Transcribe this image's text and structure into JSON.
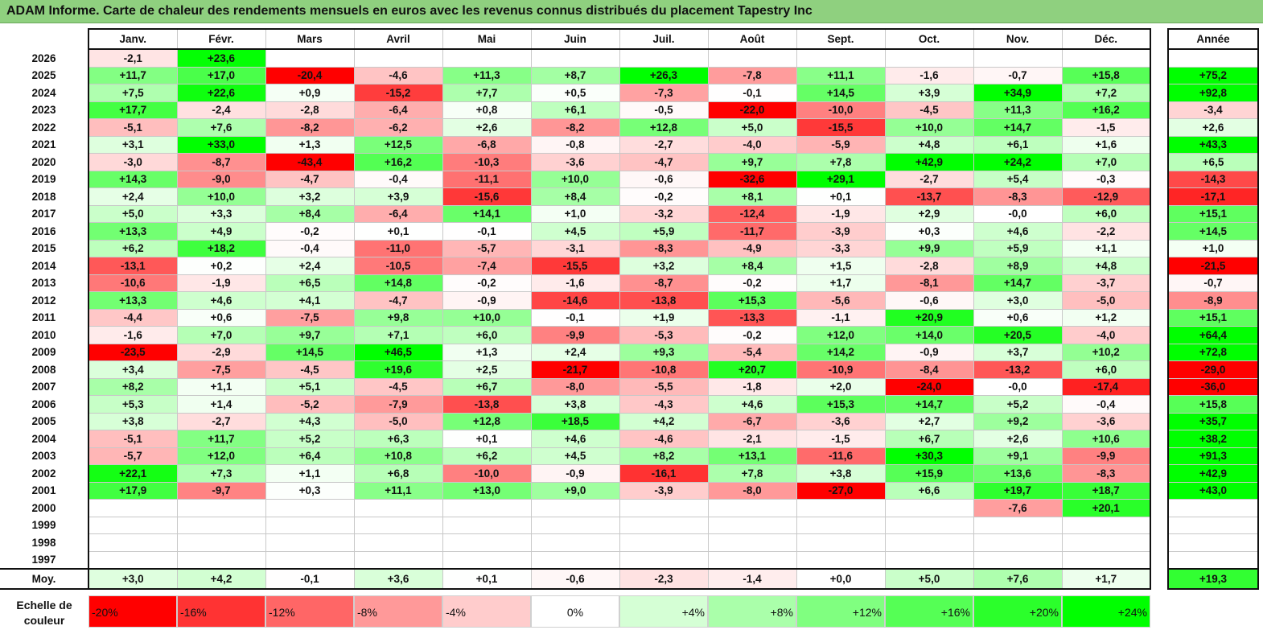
{
  "title": "ADAM Informe. Carte de chaleur des rendements mensuels en euros avec les revenus connus distribués du placement Tapestry Inc",
  "chart_data": {
    "type": "heatmap",
    "title": "ADAM Informe. Carte de chaleur des rendements mensuels en euros avec les revenus connus distribués du placement Tapestry Inc",
    "months": [
      "Janv.",
      "Févr.",
      "Mars",
      "Avril",
      "Mai",
      "Juin",
      "Juil.",
      "Août",
      "Sept.",
      "Oct.",
      "Nov.",
      "Déc."
    ],
    "year_header": "Année",
    "rows": [
      {
        "year": "2026",
        "months": [
          "-2,1",
          "+23,6",
          "",
          "",
          "",
          "",
          "",
          "",
          "",
          "",
          "",
          ""
        ],
        "annual": ""
      },
      {
        "year": "2025",
        "months": [
          "+11,7",
          "+17,0",
          "-20,4",
          "-4,6",
          "+11,3",
          "+8,7",
          "+26,3",
          "-7,8",
          "+11,1",
          "-1,6",
          "-0,7",
          "+15,8"
        ],
        "annual": "+75,2"
      },
      {
        "year": "2024",
        "months": [
          "+7,5",
          "+22,6",
          "+0,9",
          "-15,2",
          "+7,7",
          "+0,5",
          "-7,3",
          "-0,1",
          "+14,5",
          "+3,9",
          "+34,9",
          "+7,2"
        ],
        "annual": "+92,8"
      },
      {
        "year": "2023",
        "months": [
          "+17,7",
          "-2,4",
          "-2,8",
          "-6,4",
          "+0,8",
          "+6,1",
          "-0,5",
          "-22,0",
          "-10,0",
          "-4,5",
          "+11,3",
          "+16,2"
        ],
        "annual": "-3,4"
      },
      {
        "year": "2022",
        "months": [
          "-5,1",
          "+7,6",
          "-8,2",
          "-6,2",
          "+2,6",
          "-8,2",
          "+12,8",
          "+5,0",
          "-15,5",
          "+10,0",
          "+14,7",
          "-1,5"
        ],
        "annual": "+2,6"
      },
      {
        "year": "2021",
        "months": [
          "+3,1",
          "+33,0",
          "+1,3",
          "+12,5",
          "-6,8",
          "-0,8",
          "-2,7",
          "-4,0",
          "-5,9",
          "+4,8",
          "+6,1",
          "+1,6"
        ],
        "annual": "+43,3"
      },
      {
        "year": "2020",
        "months": [
          "-3,0",
          "-8,7",
          "-43,4",
          "+16,2",
          "-10,3",
          "-3,6",
          "-4,7",
          "+9,7",
          "+7,8",
          "+42,9",
          "+24,2",
          "+7,0"
        ],
        "annual": "+6,5"
      },
      {
        "year": "2019",
        "months": [
          "+14,3",
          "-9,0",
          "-4,7",
          "-0,4",
          "-11,1",
          "+10,0",
          "-0,6",
          "-32,6",
          "+29,1",
          "-2,7",
          "+5,4",
          "-0,3"
        ],
        "annual": "-14,3"
      },
      {
        "year": "2018",
        "months": [
          "+2,4",
          "+10,0",
          "+3,2",
          "+3,9",
          "-15,6",
          "+8,4",
          "-0,2",
          "+8,1",
          "+0,1",
          "-13,7",
          "-8,3",
          "-12,9"
        ],
        "annual": "-17,1"
      },
      {
        "year": "2017",
        "months": [
          "+5,0",
          "+3,3",
          "+8,4",
          "-6,4",
          "+14,1",
          "+1,0",
          "-3,2",
          "-12,4",
          "-1,9",
          "+2,9",
          "-0,0",
          "+6,0"
        ],
        "annual": "+15,1"
      },
      {
        "year": "2016",
        "months": [
          "+13,3",
          "+4,9",
          "-0,2",
          "+0,1",
          "-0,1",
          "+4,5",
          "+5,9",
          "-11,7",
          "-3,9",
          "+0,3",
          "+4,6",
          "-2,2"
        ],
        "annual": "+14,5"
      },
      {
        "year": "2015",
        "months": [
          "+6,2",
          "+18,2",
          "-0,4",
          "-11,0",
          "-5,7",
          "-3,1",
          "-8,3",
          "-4,9",
          "-3,3",
          "+9,9",
          "+5,9",
          "+1,1"
        ],
        "annual": "+1,0"
      },
      {
        "year": "2014",
        "months": [
          "-13,1",
          "+0,2",
          "+2,4",
          "-10,5",
          "-7,4",
          "-15,5",
          "+3,2",
          "+8,4",
          "+1,5",
          "-2,8",
          "+8,9",
          "+4,8"
        ],
        "annual": "-21,5"
      },
      {
        "year": "2013",
        "months": [
          "-10,6",
          "-1,9",
          "+6,5",
          "+14,8",
          "-0,2",
          "-1,6",
          "-8,7",
          "-0,2",
          "+1,7",
          "-8,1",
          "+14,7",
          "-3,7"
        ],
        "annual": "-0,7"
      },
      {
        "year": "2012",
        "months": [
          "+13,3",
          "+4,6",
          "+4,1",
          "-4,7",
          "-0,9",
          "-14,6",
          "-13,8",
          "+15,3",
          "-5,6",
          "-0,6",
          "+3,0",
          "-5,0"
        ],
        "annual": "-8,9"
      },
      {
        "year": "2011",
        "months": [
          "-4,4",
          "+0,6",
          "-7,5",
          "+9,8",
          "+10,0",
          "-0,1",
          "+1,9",
          "-13,3",
          "-1,1",
          "+20,9",
          "+0,6",
          "+1,2"
        ],
        "annual": "+15,1"
      },
      {
        "year": "2010",
        "months": [
          "-1,6",
          "+7,0",
          "+9,7",
          "+7,1",
          "+6,0",
          "-9,9",
          "-5,3",
          "-0,2",
          "+12,0",
          "+14,0",
          "+20,5",
          "-4,0"
        ],
        "annual": "+64,4"
      },
      {
        "year": "2009",
        "months": [
          "-23,5",
          "-2,9",
          "+14,5",
          "+46,5",
          "+1,3",
          "+2,4",
          "+9,3",
          "-5,4",
          "+14,2",
          "-0,9",
          "+3,7",
          "+10,2"
        ],
        "annual": "+72,8"
      },
      {
        "year": "2008",
        "months": [
          "+3,4",
          "-7,5",
          "-4,5",
          "+19,6",
          "+2,5",
          "-21,7",
          "-10,8",
          "+20,7",
          "-10,9",
          "-8,4",
          "-13,2",
          "+6,0"
        ],
        "annual": "-29,0"
      },
      {
        "year": "2007",
        "months": [
          "+8,2",
          "+1,1",
          "+5,1",
          "-4,5",
          "+6,7",
          "-8,0",
          "-5,5",
          "-1,8",
          "+2,0",
          "-24,0",
          "-0,0",
          "-17,4"
        ],
        "annual": "-36,0"
      },
      {
        "year": "2006",
        "months": [
          "+5,3",
          "+1,4",
          "-5,2",
          "-7,9",
          "-13,8",
          "+3,8",
          "-4,3",
          "+4,6",
          "+15,3",
          "+14,7",
          "+5,2",
          "-0,4"
        ],
        "annual": "+15,8"
      },
      {
        "year": "2005",
        "months": [
          "+3,8",
          "-2,7",
          "+4,3",
          "-5,0",
          "+12,8",
          "+18,5",
          "+4,2",
          "-6,7",
          "-3,6",
          "+2,7",
          "+9,2",
          "-3,6"
        ],
        "annual": "+35,7"
      },
      {
        "year": "2004",
        "months": [
          "-5,1",
          "+11,7",
          "+5,2",
          "+6,3",
          "+0,1",
          "+4,6",
          "-4,6",
          "-2,1",
          "-1,5",
          "+6,7",
          "+2,6",
          "+10,6"
        ],
        "annual": "+38,2"
      },
      {
        "year": "2003",
        "months": [
          "-5,7",
          "+12,0",
          "+6,4",
          "+10,8",
          "+6,2",
          "+4,5",
          "+8,2",
          "+13,1",
          "-11,6",
          "+30,3",
          "+9,1",
          "-9,9"
        ],
        "annual": "+91,3"
      },
      {
        "year": "2002",
        "months": [
          "+22,1",
          "+7,3",
          "+1,1",
          "+6,8",
          "-10,0",
          "-0,9",
          "-16,1",
          "+7,8",
          "+3,8",
          "+15,9",
          "+13,6",
          "-8,3"
        ],
        "annual": "+42,9"
      },
      {
        "year": "2001",
        "months": [
          "+17,9",
          "-9,7",
          "+0,3",
          "+11,1",
          "+13,0",
          "+9,0",
          "-3,9",
          "-8,0",
          "-27,0",
          "+6,6",
          "+19,7",
          "+18,7"
        ],
        "annual": "+43,0"
      },
      {
        "year": "2000",
        "months": [
          "",
          "",
          "",
          "",
          "",
          "",
          "",
          "",
          "",
          "",
          "-7,6",
          "+20,1"
        ],
        "annual": ""
      },
      {
        "year": "1999",
        "months": [
          "",
          "",
          "",
          "",
          "",
          "",
          "",
          "",
          "",
          "",
          "",
          ""
        ],
        "annual": ""
      },
      {
        "year": "1998",
        "months": [
          "",
          "",
          "",
          "",
          "",
          "",
          "",
          "",
          "",
          "",
          "",
          ""
        ],
        "annual": ""
      },
      {
        "year": "1997",
        "months": [
          "",
          "",
          "",
          "",
          "",
          "",
          "",
          "",
          "",
          "",
          "",
          ""
        ],
        "annual": ""
      }
    ],
    "average": {
      "label": "Moy.",
      "months": [
        "+3,0",
        "+4,2",
        "-0,1",
        "+3,6",
        "+0,1",
        "-0,6",
        "-2,3",
        "-1,4",
        "+0,0",
        "+5,0",
        "+7,6",
        "+1,7"
      ],
      "annual": "+19,3"
    },
    "legend": {
      "label_line1": "Echelle de",
      "label_line2": "couleur",
      "steps": [
        "-20%",
        "-16%",
        "-12%",
        "-8%",
        "-4%",
        "0%",
        "+4%",
        "+8%",
        "+12%",
        "+16%",
        "+20%",
        "+24%"
      ],
      "step_values": [
        -20,
        -16,
        -12,
        -8,
        -4,
        0,
        4,
        8,
        12,
        16,
        20,
        24
      ]
    },
    "color_scale": {
      "negative": "#ff0000",
      "neutral": "#ffffff",
      "positive": "#00ff00",
      "min": -20,
      "max": 24
    }
  }
}
